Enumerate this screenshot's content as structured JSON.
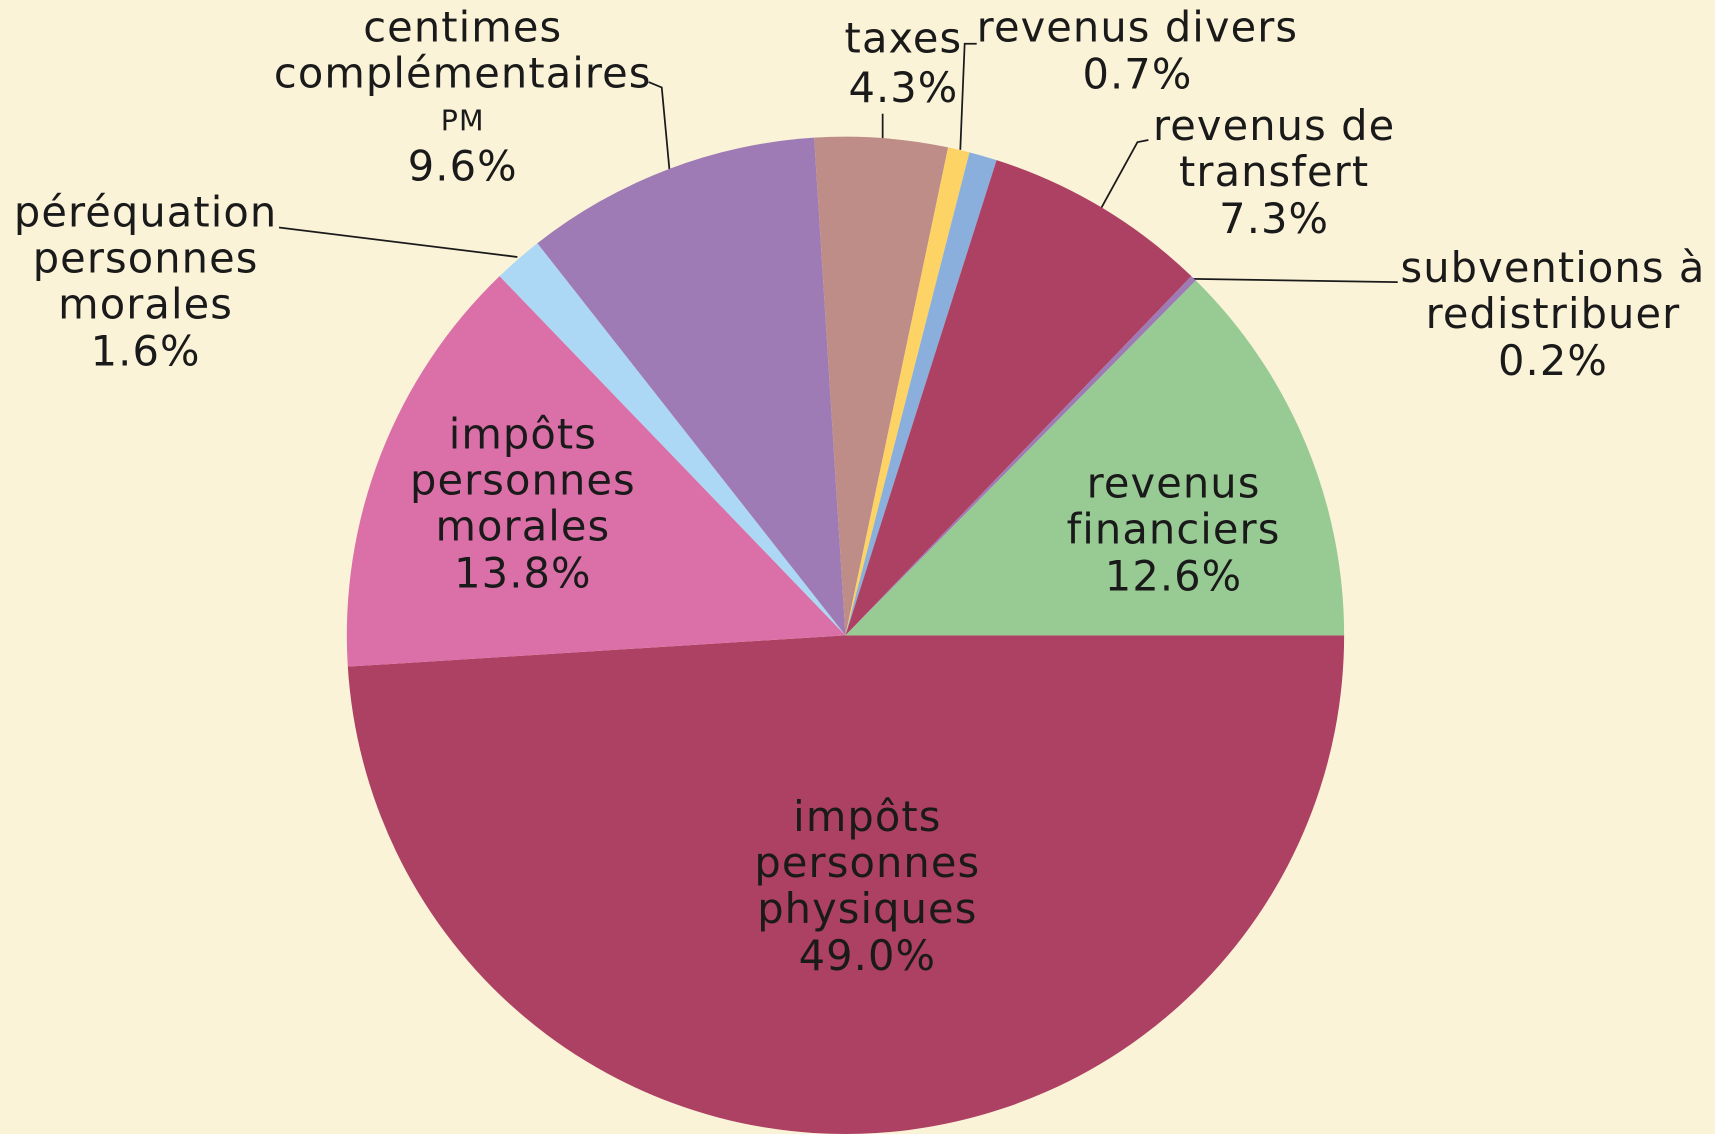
{
  "chart_data": {
    "type": "pie",
    "categories": [
      [
        "impôts",
        "personnes",
        "physiques"
      ],
      [
        "impôts",
        "personnes",
        "morales"
      ],
      [
        "péréquation",
        "personnes",
        "morales"
      ],
      [
        "centimes",
        "complémentaires",
        "PM"
      ],
      [
        "taxes"
      ],
      [
        "revenus divers"
      ],
      null,
      [
        "revenus de",
        "transfert"
      ],
      [
        "subventions à",
        "redistribuer"
      ],
      [
        "revenus",
        "financiers"
      ]
    ],
    "values": [
      49.0,
      13.8,
      1.6,
      9.6,
      4.3,
      0.7,
      0.9,
      7.3,
      0.2,
      12.6
    ],
    "value_labels": [
      "49.0%",
      "13.8%",
      "1.6%",
      "9.6%",
      "4.3%",
      "0.7%",
      null,
      "7.3%",
      "0.2%",
      "12.6%"
    ],
    "colors": [
      "#ad4163",
      "#db70a8",
      "#acd8f5",
      "#9e7bb5",
      "#bf8d87",
      "#fcd364",
      "#8aafdc",
      "#ad4163",
      "#9e7bb5",
      "#98ca94"
    ]
  }
}
